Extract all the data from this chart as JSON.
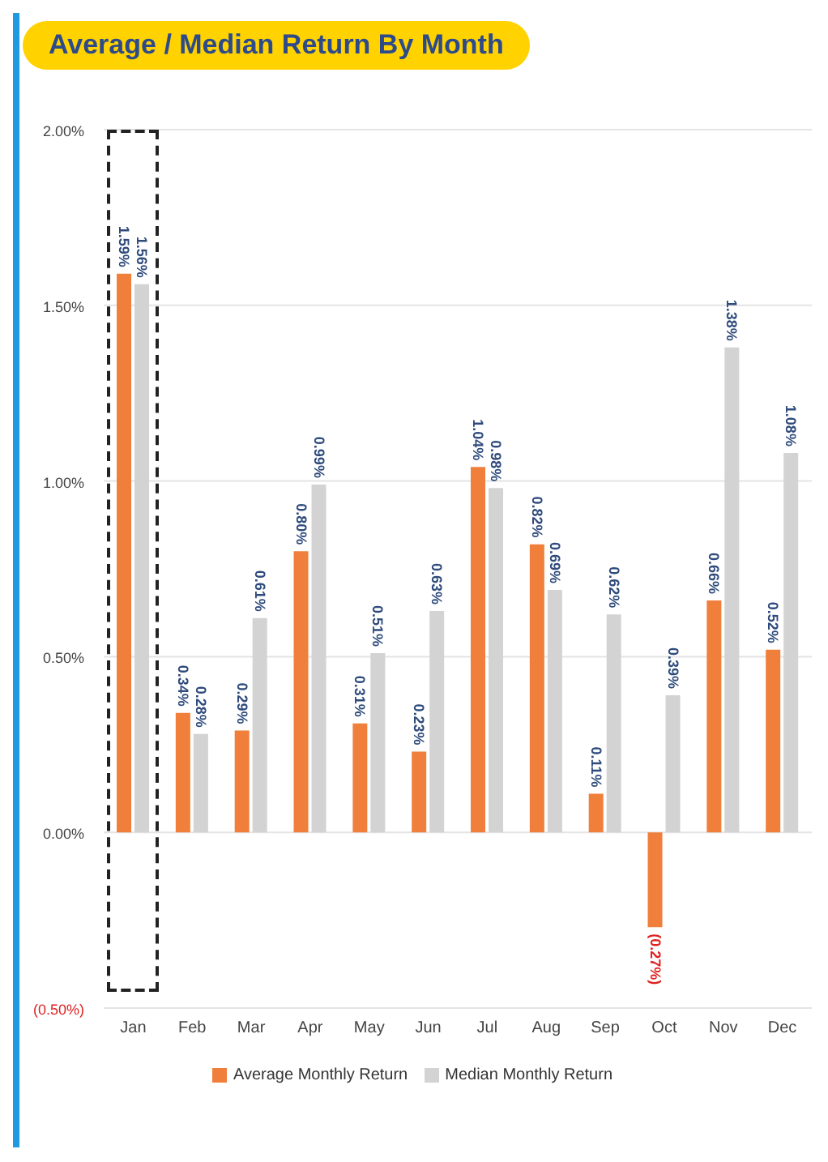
{
  "chart_data": {
    "type": "bar",
    "title": "Average / Median Return By Month",
    "categories": [
      "Jan",
      "Feb",
      "Mar",
      "Apr",
      "May",
      "Jun",
      "Jul",
      "Aug",
      "Sep",
      "Oct",
      "Nov",
      "Dec"
    ],
    "series": [
      {
        "name": "Average Monthly Return",
        "color": "#f07f3c",
        "values": [
          1.59,
          0.34,
          0.29,
          0.8,
          0.31,
          0.23,
          1.04,
          0.82,
          0.11,
          -0.27,
          0.66,
          0.52
        ],
        "value_labels": [
          "1.59%",
          "0.34%",
          "0.29%",
          "0.80%",
          "0.31%",
          "0.23%",
          "1.04%",
          "0.82%",
          "0.11%",
          "(0.27%)",
          "0.66%",
          "0.52%"
        ]
      },
      {
        "name": "Median Monthly Return",
        "color": "#d3d3d3",
        "values": [
          1.56,
          0.28,
          0.61,
          0.99,
          0.51,
          0.63,
          0.98,
          0.69,
          0.62,
          0.39,
          1.38,
          1.08
        ],
        "value_labels": [
          "1.56%",
          "0.28%",
          "0.61%",
          "0.99%",
          "0.51%",
          "0.63%",
          "0.98%",
          "0.69%",
          "0.62%",
          "0.39%",
          "1.38%",
          "1.08%"
        ]
      }
    ],
    "ylim": [
      -0.5,
      2.0
    ],
    "yticks": [
      {
        "value": -0.5,
        "label": "(0.50%)"
      },
      {
        "value": 0,
        "label": "0.00%"
      },
      {
        "value": 0.5,
        "label": "0.50%"
      },
      {
        "value": 1.0,
        "label": "1.00%"
      },
      {
        "value": 1.5,
        "label": "1.50%"
      },
      {
        "value": 2.0,
        "label": "2.00%"
      }
    ],
    "grid": "y",
    "legend": "bottom"
  }
}
